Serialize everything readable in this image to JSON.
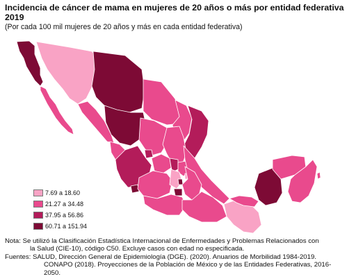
{
  "header": {
    "title": "Incidencia de cáncer de mama en mujeres de 20 años o más por entidad federativa 2019",
    "subtitle": "(Por cada 100 mil mujeres de 20 años y más en cada entidad federativa)"
  },
  "colors": {
    "class1": "#f9a3c5",
    "class2": "#e94a8d",
    "class3": "#b31c5a",
    "class4": "#7d0a35",
    "border": "#ffffff"
  },
  "legend": {
    "items": [
      {
        "label": "7.69 a 18.60"
      },
      {
        "label": "21.27 a 34.48"
      },
      {
        "label": "37.95 a 56.86"
      },
      {
        "label": "60.71 a 151.94"
      }
    ]
  },
  "notes": {
    "nota_line1": "Nota: Se utilizó la Clasificación Estadística Internacional de Enfermedades y Problemas Relacionados con",
    "nota_line2": "la Salud (CIE-10), código C50. Excluye casos con edad no especificada.",
    "fuentes_line1": "Fuentes: SALUD, Dirección General de Epidemiología (DGE). (2020). Anuarios de Morbilidad 1984-2019.",
    "fuentes_line2": "CONAPO (2018). Proyecciones de la Población de México y de las Entidades Federativas, 2016-",
    "fuentes_line3": "2050."
  }
}
